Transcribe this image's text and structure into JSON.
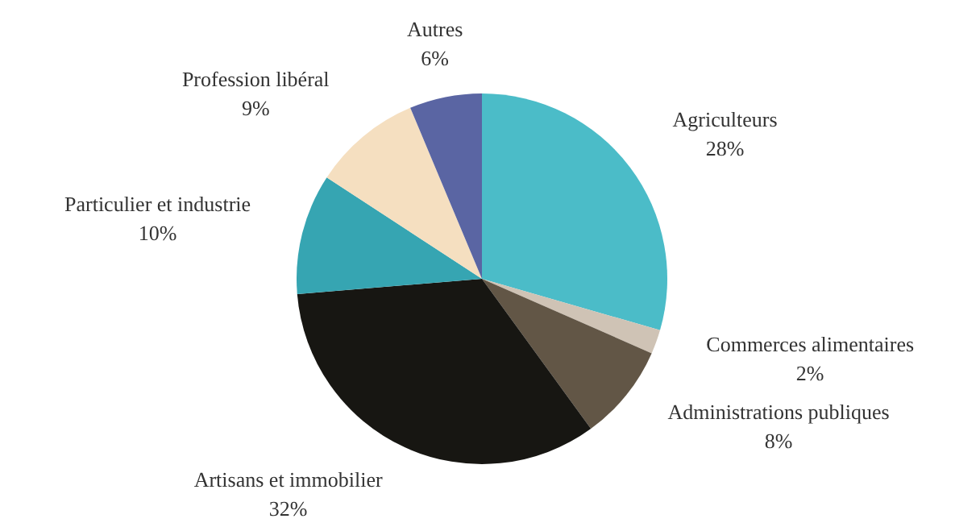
{
  "chart_data": {
    "type": "pie",
    "categories": [
      "Agriculteurs",
      "Commerces alimentaires",
      "Administrations publiques",
      "Artisans et immobilier",
      "Particulier et industrie",
      "Profession libéral",
      "Autres"
    ],
    "values": [
      28,
      2,
      8,
      32,
      10,
      9,
      6
    ],
    "value_labels": [
      "28%",
      "2%",
      "8%",
      "32%",
      "10%",
      "9%",
      "6%"
    ],
    "colors": [
      "#4bbcc8",
      "#cfc3b5",
      "#625646",
      "#171612",
      "#36a5b2",
      "#f5dfc0",
      "#5a65a3"
    ],
    "legend": false
  }
}
